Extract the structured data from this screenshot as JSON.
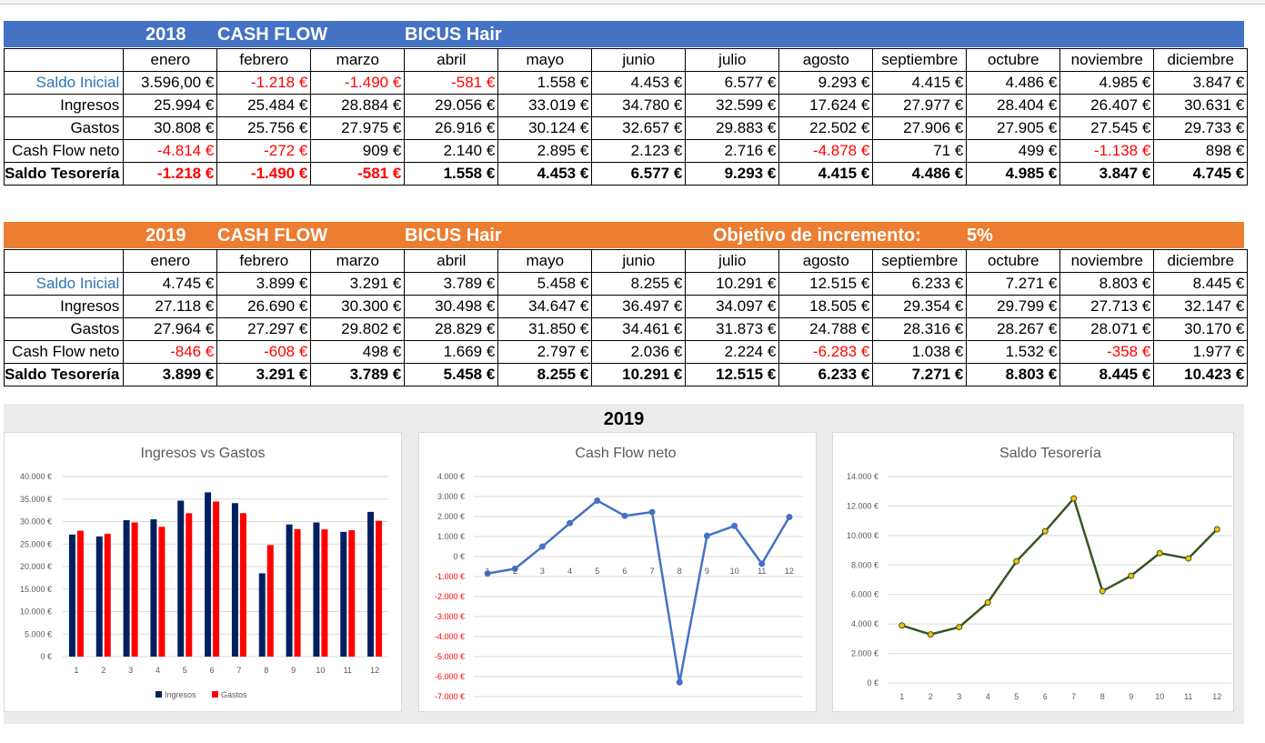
{
  "months": [
    "enero",
    "febrero",
    "marzo",
    "abril",
    "mayo",
    "junio",
    "julio",
    "agosto",
    "septiembre",
    "octubre",
    "noviembre",
    "diciembre"
  ],
  "row_labels": [
    "Saldo Inicial",
    "Ingresos",
    "Gastos",
    "Cash Flow neto",
    "Saldo Tesorería"
  ],
  "colors": {
    "blue_band": "#4472c4",
    "orange_band": "#ed7d31",
    "negative": "#ff0000",
    "saldo_label": "#2e75b6",
    "ingresos_bar": "#002060",
    "gastos_bar": "#ff0000",
    "cashflow_line": "#4472c4",
    "saldo_line": "#375623",
    "saldo_marker": "#ffc000"
  },
  "t2018": {
    "year": "2018",
    "title": "CASH FLOW",
    "company": "BICUS Hair",
    "rows": [
      [
        "3.596,00 €",
        "-1.218 €",
        "-1.490 €",
        "-581 €",
        "1.558 €",
        "4.453 €",
        "6.577 €",
        "9.293 €",
        "4.415 €",
        "4.486 €",
        "4.985 €",
        "3.847 €"
      ],
      [
        "25.994 €",
        "25.484 €",
        "28.884 €",
        "29.056 €",
        "33.019 €",
        "34.780 €",
        "32.599 €",
        "17.624 €",
        "27.977 €",
        "28.404 €",
        "26.407 €",
        "30.631 €"
      ],
      [
        "30.808 €",
        "25.756 €",
        "27.975 €",
        "26.916 €",
        "30.124 €",
        "32.657 €",
        "29.883 €",
        "22.502 €",
        "27.906 €",
        "27.905 €",
        "27.545 €",
        "29.733 €"
      ],
      [
        "-4.814 €",
        "-272 €",
        "909 €",
        "2.140 €",
        "2.895 €",
        "2.123 €",
        "2.716 €",
        "-4.878 €",
        "71 €",
        "499 €",
        "-1.138 €",
        "898 €"
      ],
      [
        "-1.218 €",
        "-1.490 €",
        "-581 €",
        "1.558 €",
        "4.453 €",
        "6.577 €",
        "9.293 €",
        "4.415 €",
        "4.486 €",
        "4.985 €",
        "3.847 €",
        "4.745 €"
      ]
    ]
  },
  "t2019": {
    "year": "2019",
    "title": "CASH FLOW",
    "company": "BICUS Hair",
    "objective_label": "Objetivo de incremento:",
    "objective_value": "5%",
    "rows": [
      [
        "4.745 €",
        "3.899 €",
        "3.291 €",
        "3.789 €",
        "5.458 €",
        "8.255 €",
        "10.291 €",
        "12.515 €",
        "6.233 €",
        "7.271 €",
        "8.803 €",
        "8.445 €"
      ],
      [
        "27.118 €",
        "26.690 €",
        "30.300 €",
        "30.498 €",
        "34.647 €",
        "36.497 €",
        "34.097 €",
        "18.505 €",
        "29.354 €",
        "29.799 €",
        "27.713 €",
        "32.147 €"
      ],
      [
        "27.964 €",
        "27.297 €",
        "29.802 €",
        "28.829 €",
        "31.850 €",
        "34.461 €",
        "31.873 €",
        "24.788 €",
        "28.316 €",
        "28.267 €",
        "28.071 €",
        "30.170 €"
      ],
      [
        "-846 €",
        "-608 €",
        "498 €",
        "1.669 €",
        "2.797 €",
        "2.036 €",
        "2.224 €",
        "-6.283 €",
        "1.038 €",
        "1.532 €",
        "-358 €",
        "1.977 €"
      ],
      [
        "3.899 €",
        "3.291 €",
        "3.789 €",
        "5.458 €",
        "8.255 €",
        "10.291 €",
        "12.515 €",
        "6.233 €",
        "7.271 €",
        "8.803 €",
        "8.445 €",
        "10.423 €"
      ]
    ]
  },
  "dashboard": {
    "title": "2019"
  },
  "chart_data": [
    {
      "type": "bar",
      "title": "Ingresos vs Gastos",
      "categories": [
        "1",
        "2",
        "3",
        "4",
        "5",
        "6",
        "7",
        "8",
        "9",
        "10",
        "11",
        "12"
      ],
      "series": [
        {
          "name": "Ingresos",
          "values": [
            27118,
            26690,
            30300,
            30498,
            34647,
            36497,
            34097,
            18505,
            29354,
            29799,
            27713,
            32147
          ]
        },
        {
          "name": "Gastos",
          "values": [
            27964,
            27297,
            29802,
            28829,
            31850,
            34461,
            31873,
            24788,
            28316,
            28267,
            28071,
            30170
          ]
        }
      ],
      "ylim": [
        0,
        40000
      ],
      "yticks": [
        "0 €",
        "5.000 €",
        "10.000 €",
        "15.000 €",
        "20.000 €",
        "25.000 €",
        "30.000 €",
        "35.000 €",
        "40.000 €"
      ],
      "legend": "bottom"
    },
    {
      "type": "line",
      "title": "Cash Flow neto",
      "categories": [
        "1",
        "2",
        "3",
        "4",
        "5",
        "6",
        "7",
        "8",
        "9",
        "10",
        "11",
        "12"
      ],
      "series": [
        {
          "values": [
            -846,
            -608,
            498,
            1669,
            2797,
            2036,
            2224,
            -6283,
            1038,
            1532,
            -358,
            1977
          ]
        }
      ],
      "ylim": [
        -7000,
        4000
      ],
      "yticks": [
        "-7.000 €",
        "-6.000 €",
        "-5.000 €",
        "-4.000 €",
        "-3.000 €",
        "-2.000 €",
        "-1.000 €",
        "0 €",
        "1.000 €",
        "2.000 €",
        "3.000 €",
        "4.000 €"
      ]
    },
    {
      "type": "line",
      "title": "Saldo Tesorería",
      "categories": [
        "1",
        "2",
        "3",
        "4",
        "5",
        "6",
        "7",
        "8",
        "9",
        "10",
        "11",
        "12"
      ],
      "series": [
        {
          "values": [
            3899,
            3291,
            3789,
            5458,
            8255,
            10291,
            12515,
            6233,
            7271,
            8803,
            8445,
            10423
          ]
        }
      ],
      "ylim": [
        0,
        14000
      ],
      "yticks": [
        "0 €",
        "2.000 €",
        "4.000 €",
        "6.000 €",
        "8.000 €",
        "10.000 €",
        "12.000 €",
        "14.000 €"
      ]
    }
  ]
}
